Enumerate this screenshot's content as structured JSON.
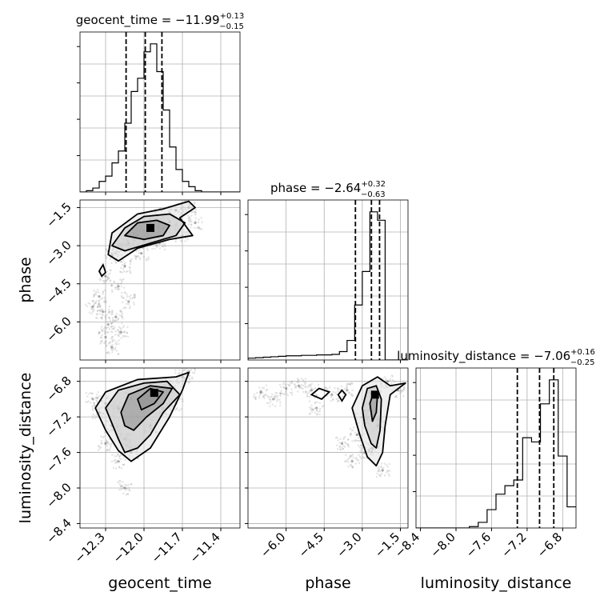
{
  "chart_data": {
    "type": "corner",
    "parameters": [
      {
        "name": "geocent_time",
        "title": "geocent_time = −11.99",
        "title_sup": "+0.13",
        "title_sub": "−0.15",
        "median": -11.99,
        "q16": -12.14,
        "q84": -11.86,
        "range": [
          -12.5,
          -11.25
        ],
        "ticks": [
          -12.3,
          -12.0,
          -11.7,
          -11.4
        ],
        "tick_labels": [
          "−12.3",
          "−12.0",
          "−11.7",
          "−11.4"
        ],
        "xlabel": "geocent_time"
      },
      {
        "name": "phase",
        "title": "phase = −2.64",
        "title_sup": "+0.32",
        "title_sub": "−0.63",
        "median": -2.64,
        "q16": -3.27,
        "q84": -2.32,
        "range": [
          -7.5,
          -1.2
        ],
        "ticks": [
          -6.0,
          -4.5,
          -3.0,
          -1.5
        ],
        "tick_labels": [
          "−6.0",
          "−4.5",
          "−3.0",
          "−1.5"
        ],
        "xlabel": "phase",
        "ylabel": "phase"
      },
      {
        "name": "luminosity_distance",
        "title": "luminosity_distance = −7.06",
        "title_sup": "+0.16",
        "title_sub": "−0.25",
        "median": -7.06,
        "q16": -7.31,
        "q84": -6.9,
        "range": [
          -8.45,
          -6.65
        ],
        "ticks": [
          -8.4,
          -8.0,
          -7.6,
          -7.2,
          -6.8
        ],
        "tick_labels": [
          "−8.4",
          "−8.0",
          "−7.6",
          "−7.2",
          "−6.8"
        ],
        "xlabel": "luminosity_distance",
        "ylabel": "luminosity_distance"
      }
    ],
    "histograms": [
      {
        "param": "geocent_time",
        "edges": [
          -12.5,
          -12.45,
          -12.4,
          -12.35,
          -12.3,
          -12.25,
          -12.2,
          -12.15,
          -12.1,
          -12.05,
          -12.0,
          -11.95,
          -11.9,
          -11.85,
          -11.8,
          -11.75,
          -11.7,
          -11.65,
          -11.6,
          -11.55,
          -11.5,
          -11.45,
          -11.4,
          -11.35,
          -11.3,
          -11.25
        ],
        "counts": [
          0,
          2,
          6,
          16,
          24,
          44,
          62,
          104,
          152,
          172,
          212,
          224,
          182,
          124,
          68,
          34,
          16,
          8,
          2,
          0,
          0,
          0,
          0,
          0,
          0
        ]
      },
      {
        "param": "phase",
        "edges": [
          -7.5,
          -7.2,
          -6.9,
          -6.6,
          -6.3,
          -6.0,
          -5.7,
          -5.4,
          -5.1,
          -4.8,
          -4.5,
          -4.2,
          -3.9,
          -3.6,
          -3.3,
          -3.0,
          -2.7,
          -2.4,
          -2.1,
          -1.8,
          -1.5,
          -1.2
        ],
        "counts": [
          4,
          5,
          6,
          7,
          8,
          9,
          9,
          10,
          10,
          11,
          11,
          12,
          18,
          42,
          118,
          190,
          318,
          300,
          0,
          0,
          0
        ]
      },
      {
        "param": "luminosity_distance",
        "edges": [
          -8.45,
          -8.35,
          -8.25,
          -8.15,
          -8.05,
          -7.95,
          -7.85,
          -7.75,
          -7.65,
          -7.55,
          -7.45,
          -7.35,
          -7.25,
          -7.15,
          -7.05,
          -6.95,
          -6.85,
          -6.75,
          -6.65
        ],
        "counts": [
          0,
          0,
          0,
          0,
          0,
          0,
          2,
          8,
          26,
          48,
          60,
          68,
          128,
          122,
          176,
          210,
          102,
          30
        ]
      }
    ],
    "pairs": [
      {
        "x": "geocent_time",
        "y": "phase",
        "points": [
          [
            -12.05,
            -2.6
          ],
          [
            -11.98,
            -2.4
          ],
          [
            -11.92,
            -2.2
          ],
          [
            -12.12,
            -2.9
          ],
          [
            -12.2,
            -3.1
          ],
          [
            -11.85,
            -2.3
          ],
          [
            -11.8,
            -2.05
          ],
          [
            -12.25,
            -3.4
          ],
          [
            -12.3,
            -4.2
          ],
          [
            -12.35,
            -5.0
          ],
          [
            -12.32,
            -5.6
          ],
          [
            -12.28,
            -6.1
          ],
          [
            -12.3,
            -6.6
          ],
          [
            -12.25,
            -7.0
          ],
          [
            -12.2,
            -4.6
          ],
          [
            -12.15,
            -3.8
          ],
          [
            -11.9,
            -1.8
          ],
          [
            -11.75,
            -1.6
          ],
          [
            -11.65,
            -1.5
          ],
          [
            -12.0,
            -2.8
          ],
          [
            -12.08,
            -2.5
          ],
          [
            -11.95,
            -2.7
          ],
          [
            -12.4,
            -5.4
          ],
          [
            -12.22,
            -5.8
          ],
          [
            -12.18,
            -6.4
          ],
          [
            -12.12,
            -5.2
          ],
          [
            -11.7,
            -2.6
          ],
          [
            -11.6,
            -2.1
          ],
          [
            -12.02,
            -3.3
          ],
          [
            -11.88,
            -2.9
          ]
        ],
        "peak": [
          -11.95,
          -2.3
        ],
        "contours": [
          [
            [
              -12.15,
              -2.6
            ],
            [
              -12.05,
              -2.1
            ],
            [
              -11.9,
              -2.0
            ],
            [
              -11.8,
              -2.2
            ],
            [
              -11.85,
              -2.6
            ],
            [
              -12.0,
              -2.75
            ]
          ],
          [
            [
              -12.25,
              -3.0
            ],
            [
              -12.15,
              -2.3
            ],
            [
              -12.0,
              -1.85
            ],
            [
              -11.8,
              -1.75
            ],
            [
              -11.68,
              -2.1
            ],
            [
              -11.75,
              -2.6
            ],
            [
              -11.95,
              -2.9
            ],
            [
              -12.15,
              -3.2
            ]
          ],
          [
            [
              -12.28,
              -3.35
            ],
            [
              -12.25,
              -2.5
            ],
            [
              -12.05,
              -1.75
            ],
            [
              -11.85,
              -1.55
            ],
            [
              -11.65,
              -1.25
            ],
            [
              -11.6,
              -1.5
            ],
            [
              -11.72,
              -1.9
            ],
            [
              -11.62,
              -2.6
            ],
            [
              -11.8,
              -2.75
            ],
            [
              -12.05,
              -3.1
            ],
            [
              -12.2,
              -3.6
            ]
          ]
        ],
        "island": [
          [
            -12.35,
            -4.0
          ],
          [
            -12.32,
            -3.75
          ],
          [
            -12.3,
            -4.05
          ],
          [
            -12.33,
            -4.2
          ]
        ]
      },
      {
        "x": "geocent_time",
        "y": "luminosity_distance",
        "points": [
          [
            -12.1,
            -7.0
          ],
          [
            -12.0,
            -6.95
          ],
          [
            -11.9,
            -6.9
          ],
          [
            -12.2,
            -7.1
          ],
          [
            -12.3,
            -7.05
          ],
          [
            -12.25,
            -7.3
          ],
          [
            -12.15,
            -7.45
          ],
          [
            -12.1,
            -7.6
          ],
          [
            -11.8,
            -6.85
          ],
          [
            -11.7,
            -6.75
          ],
          [
            -11.65,
            -6.7
          ],
          [
            -12.05,
            -7.2
          ],
          [
            -12.35,
            -7.15
          ],
          [
            -12.4,
            -7.0
          ],
          [
            -11.95,
            -7.3
          ],
          [
            -11.85,
            -7.1
          ],
          [
            -12.2,
            -7.7
          ],
          [
            -12.15,
            -8.0
          ],
          [
            -12.3,
            -7.5
          ],
          [
            -11.75,
            -7.05
          ]
        ],
        "peak": [
          -11.92,
          -6.93
        ],
        "contours": [
          [
            [
              -12.05,
              -7.0
            ],
            [
              -11.95,
              -6.88
            ],
            [
              -11.85,
              -6.92
            ],
            [
              -11.92,
              -7.05
            ],
            [
              -12.02,
              -7.12
            ]
          ],
          [
            [
              -12.18,
              -7.15
            ],
            [
              -12.12,
              -6.95
            ],
            [
              -11.95,
              -6.85
            ],
            [
              -11.78,
              -6.88
            ],
            [
              -11.85,
              -7.05
            ],
            [
              -11.98,
              -7.2
            ],
            [
              -12.08,
              -7.35
            ],
            [
              -12.15,
              -7.3
            ]
          ],
          [
            [
              -12.3,
              -7.1
            ],
            [
              -12.2,
              -6.9
            ],
            [
              -12.0,
              -6.82
            ],
            [
              -11.82,
              -6.8
            ],
            [
              -11.72,
              -6.95
            ],
            [
              -11.85,
              -7.15
            ],
            [
              -11.95,
              -7.4
            ],
            [
              -12.05,
              -7.55
            ],
            [
              -12.15,
              -7.6
            ],
            [
              -12.2,
              -7.45
            ]
          ],
          [
            [
              -12.38,
              -7.1
            ],
            [
              -12.3,
              -6.92
            ],
            [
              -12.05,
              -6.78
            ],
            [
              -11.75,
              -6.75
            ],
            [
              -11.65,
              -6.7
            ],
            [
              -11.7,
              -6.9
            ],
            [
              -11.8,
              -7.2
            ],
            [
              -11.95,
              -7.55
            ],
            [
              -12.1,
              -7.7
            ],
            [
              -12.2,
              -7.58
            ],
            [
              -12.3,
              -7.35
            ]
          ]
        ]
      },
      {
        "x": "phase",
        "y": "luminosity_distance",
        "points": [
          [
            -2.5,
            -6.95
          ],
          [
            -2.7,
            -7.1
          ],
          [
            -3.0,
            -7.2
          ],
          [
            -3.2,
            -7.4
          ],
          [
            -2.4,
            -7.3
          ],
          [
            -2.9,
            -7.6
          ],
          [
            -2.6,
            -7.55
          ],
          [
            -5.0,
            -6.9
          ],
          [
            -6.0,
            -6.88
          ],
          [
            -7.0,
            -6.92
          ],
          [
            -4.2,
            -6.95
          ],
          [
            -3.6,
            -6.9
          ],
          [
            -6.5,
            -7.0
          ],
          [
            -5.5,
            -6.85
          ],
          [
            -3.4,
            -7.7
          ],
          [
            -2.2,
            -7.8
          ],
          [
            -2.0,
            -6.8
          ],
          [
            -1.6,
            -6.9
          ],
          [
            -4.8,
            -7.1
          ],
          [
            -3.8,
            -7.5
          ]
        ],
        "peak": [
          -2.5,
          -6.95
        ],
        "contours": [
          [
            [
              -2.7,
              -7.05
            ],
            [
              -2.55,
              -6.92
            ],
            [
              -2.4,
              -6.95
            ],
            [
              -2.45,
              -7.15
            ],
            [
              -2.6,
              -7.25
            ]
          ],
          [
            [
              -3.0,
              -7.1
            ],
            [
              -2.8,
              -6.88
            ],
            [
              -2.45,
              -6.85
            ],
            [
              -2.25,
              -7.0
            ],
            [
              -2.3,
              -7.35
            ],
            [
              -2.45,
              -7.55
            ],
            [
              -2.65,
              -7.5
            ],
            [
              -2.9,
              -7.3
            ]
          ],
          [
            [
              -3.4,
              -7.1
            ],
            [
              -3.0,
              -6.85
            ],
            [
              -2.4,
              -6.75
            ],
            [
              -1.9,
              -6.85
            ],
            [
              -1.3,
              -6.82
            ],
            [
              -1.9,
              -6.95
            ],
            [
              -2.1,
              -7.3
            ],
            [
              -2.2,
              -7.6
            ],
            [
              -2.45,
              -7.75
            ],
            [
              -2.8,
              -7.65
            ],
            [
              -3.1,
              -7.4
            ]
          ]
        ],
        "island": [
          [
            -5.0,
            -6.95
          ],
          [
            -4.7,
            -6.88
          ],
          [
            -4.3,
            -6.92
          ],
          [
            -4.6,
            -7.0
          ]
        ],
        "island2": [
          [
            -3.95,
            -6.95
          ],
          [
            -3.8,
            -6.9
          ],
          [
            -3.65,
            -6.95
          ],
          [
            -3.8,
            -7.02
          ]
        ]
      }
    ],
    "grid": true,
    "quantile_lines": "dashed"
  }
}
